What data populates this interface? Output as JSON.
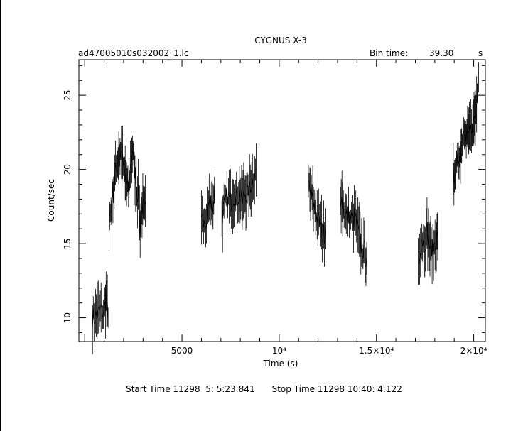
{
  "chart_data": {
    "type": "line",
    "title": "CYGNUS X-3",
    "file_label": "ad47005010s032002_1.lc",
    "bin_time_label": "Bin time:",
    "bin_time_value": "39.30",
    "bin_time_unit": "s",
    "xlabel": "Time (s)",
    "ylabel": "Count/sec",
    "xlim": [
      -300,
      20600
    ],
    "ylim": [
      8.4,
      27.4
    ],
    "x_ticks": [
      {
        "value": 5000,
        "label": "5000"
      },
      {
        "value": 10000,
        "label": "10⁴"
      },
      {
        "value": 15000,
        "label": "1.5×10⁴"
      },
      {
        "value": 20000,
        "label": "2×10⁴"
      }
    ],
    "y_ticks": [
      {
        "value": 10,
        "label": "10"
      },
      {
        "value": 15,
        "label": "15"
      },
      {
        "value": 20,
        "label": "20"
      },
      {
        "value": 25,
        "label": "25"
      }
    ],
    "segments": [
      {
        "x": [
          400,
          600,
          800,
          1000,
          1100,
          1200
        ],
        "y": [
          10.0,
          10.1,
          10.5,
          10.4,
          11.5,
          10.0
        ]
      },
      {
        "x": [
          1250,
          1350,
          1450,
          1550,
          1650,
          1750,
          1850,
          1950,
          2050,
          2150,
          2250,
          2350,
          2450,
          2550,
          2650,
          2750,
          2850,
          2950,
          3050,
          3150
        ],
        "y": [
          16.5,
          17.3,
          18.5,
          19.5,
          20.3,
          21.0,
          21.2,
          20.5,
          19.8,
          19.0,
          18.5,
          20.2,
          21.2,
          20.0,
          19.0,
          18.2,
          16.2,
          17.5,
          17.0,
          17.3
        ]
      },
      {
        "x": [
          6000,
          6150,
          6300,
          6450,
          6600,
          6700
        ],
        "y": [
          17.0,
          16.2,
          16.8,
          17.8,
          17.5,
          18.5
        ]
      },
      {
        "x": [
          7050,
          7200,
          7350,
          7500,
          7650,
          7800,
          7950,
          8100,
          8250,
          8400,
          8550,
          8700,
          8850
        ],
        "y": [
          16.8,
          17.5,
          18.2,
          17.8,
          18.3,
          18.0,
          18.4,
          17.8,
          18.5,
          18.2,
          19.0,
          19.5,
          20.0
        ]
      },
      {
        "x": [
          11500,
          11650,
          11800,
          11950,
          12100,
          12250,
          12400
        ],
        "y": [
          19.0,
          18.2,
          17.5,
          16.8,
          16.2,
          15.5,
          16.0
        ]
      },
      {
        "x": [
          13150,
          13300,
          13450,
          13600,
          13750,
          13900,
          14050,
          14200,
          14350,
          14500
        ],
        "y": [
          18.5,
          17.5,
          16.8,
          17.0,
          16.5,
          16.8,
          15.8,
          14.8,
          14.5,
          14.0
        ]
      },
      {
        "x": [
          17150,
          17300,
          17450,
          17600,
          17750,
          17900,
          18050,
          18150
        ],
        "y": [
          13.8,
          15.5,
          15.0,
          15.8,
          14.8,
          14.5,
          15.2,
          15.5
        ]
      },
      {
        "x": [
          18950,
          19050,
          19150,
          19250,
          19350,
          19450,
          19550,
          19650,
          19750,
          19850,
          19950,
          20050,
          20150,
          20250
        ],
        "y": [
          19.5,
          20.2,
          20.5,
          19.8,
          21.5,
          22.0,
          22.5,
          22.2,
          23.0,
          22.3,
          22.8,
          23.5,
          25.0,
          26.2
        ]
      }
    ]
  },
  "footer": {
    "start_time": "Start Time 11298  5: 5:23:841",
    "stop_time": "Stop Time 11298 10:40: 4:122"
  }
}
